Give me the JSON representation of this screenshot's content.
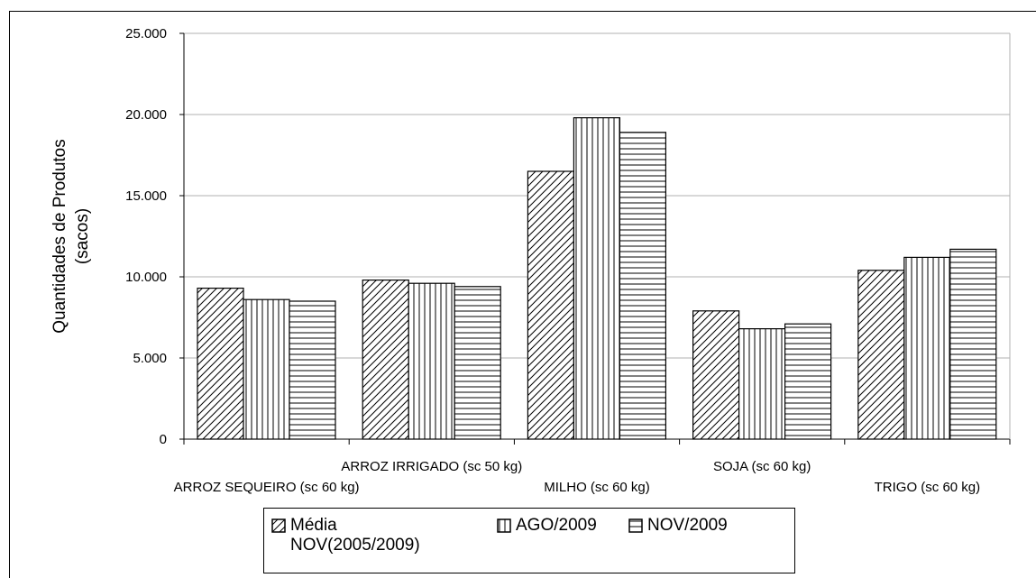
{
  "chart_data": {
    "type": "bar",
    "ylabel": [
      "Quantidades de Produtos",
      "(sacos)"
    ],
    "categories": [
      "ARROZ SEQUEIRO (sc 60 kg)",
      "ARROZ IRRIGADO (sc 50 kg)",
      "MILHO (sc 60 kg)",
      "SOJA (sc 60 kg)",
      "TRIGO (sc 60 kg)"
    ],
    "series": [
      {
        "name": "Média NOV(2005/2009)",
        "pattern": "diagonal",
        "color": "#000000",
        "values": [
          9300,
          9800,
          16500,
          7900,
          10400
        ]
      },
      {
        "name": "AGO/2009",
        "pattern": "vertical",
        "color": "#000000",
        "values": [
          8600,
          9600,
          19800,
          6800,
          11200
        ]
      },
      {
        "name": "NOV/2009",
        "pattern": "horizontal",
        "color": "#000000",
        "values": [
          8500,
          9400,
          18900,
          7100,
          11700
        ]
      }
    ],
    "ylim": [
      0,
      25000
    ],
    "yticks": [
      0,
      {
        "value": 5000,
        "label": "5.000"
      },
      {
        "value": 10000,
        "label": "10.000"
      },
      {
        "value": 15000,
        "label": "15.000"
      },
      {
        "value": 20000,
        "label": "20.000"
      },
      {
        "value": 25000,
        "label": "25.000"
      }
    ],
    "grid": true
  }
}
